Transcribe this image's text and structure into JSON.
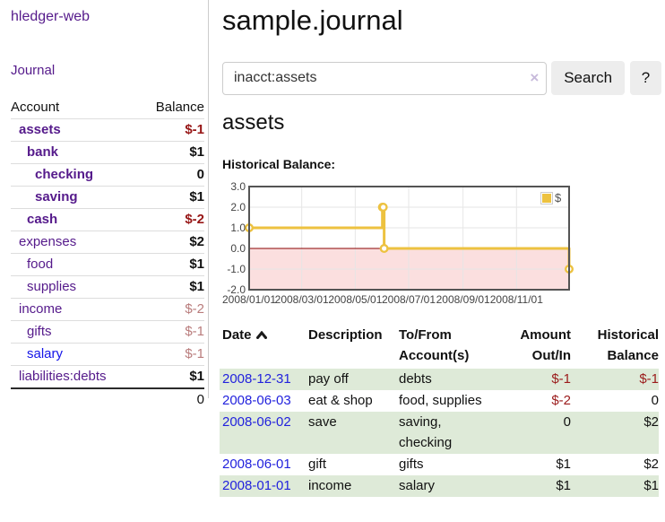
{
  "app": {
    "brand": "hledger-web"
  },
  "colors": {
    "link_purple": "#551a8b",
    "link_blue": "#1414e8",
    "date_blue": "#2222dd",
    "negative_strong": "#971616",
    "negative_muted": "#b97c7c",
    "negative_table": "#9b1b1b",
    "row_green": "#deead8",
    "line_gold": "#edc240",
    "zero_line": "#8b0000",
    "negative_region": "#fbdfdf"
  },
  "sidebar": {
    "journal_link": "Journal",
    "accounts_header": {
      "account": "Account",
      "balance": "Balance"
    },
    "accounts": [
      {
        "name": "assets",
        "balance": "$-1",
        "level": 0,
        "bold": true,
        "balance_class": "neg-strong"
      },
      {
        "name": "bank",
        "balance": "$1",
        "level": 1,
        "bold": true,
        "balance_class": "pos"
      },
      {
        "name": "checking",
        "balance": "0",
        "level": 2,
        "bold": true,
        "balance_class": "pos"
      },
      {
        "name": "saving",
        "balance": "$1",
        "level": 2,
        "bold": true,
        "balance_class": "pos"
      },
      {
        "name": "cash",
        "balance": "$-2",
        "level": 1,
        "bold": true,
        "balance_class": "neg-strong"
      },
      {
        "name": "expenses",
        "balance": "$2",
        "level": 0,
        "bold": false,
        "balance_class": "pos"
      },
      {
        "name": "food",
        "balance": "$1",
        "level": 1,
        "bold": false,
        "balance_class": "pos"
      },
      {
        "name": "supplies",
        "balance": "$1",
        "level": 1,
        "bold": false,
        "balance_class": "pos"
      },
      {
        "name": "income",
        "balance": "$-2",
        "level": 0,
        "bold": false,
        "balance_class": "neg"
      },
      {
        "name": "gifts",
        "balance": "$-1",
        "level": 1,
        "bold": false,
        "balance_class": "neg"
      },
      {
        "name": "salary",
        "balance": "$-1",
        "level": 1,
        "bold": false,
        "balance_class": "neg",
        "blue": true
      },
      {
        "name": "liabilities:debts",
        "balance": "$1",
        "level": 0,
        "bold": false,
        "balance_class": "pos"
      }
    ],
    "total": "0"
  },
  "main": {
    "title": "sample.journal",
    "search": {
      "value": "inacct:assets",
      "clear_icon": "×",
      "button": "Search",
      "help_button": "?"
    },
    "heading": "assets",
    "chart_label": "Historical Balance:"
  },
  "chart_data": {
    "type": "line",
    "step": true,
    "title": "Historical Balance:",
    "series": [
      {
        "name": "$",
        "color": "#edc240",
        "points": [
          [
            "2008-01-01",
            1
          ],
          [
            "2008-06-01",
            2
          ],
          [
            "2008-06-02",
            2
          ],
          [
            "2008-06-03",
            0
          ],
          [
            "2008-12-31",
            -1
          ]
        ]
      }
    ],
    "xlim": [
      "2008-01-01",
      "2008-12-31"
    ],
    "ylim": [
      -2,
      3
    ],
    "y_ticks": [
      "3.0",
      "2.0",
      "1.0",
      "0.0",
      "-1.0",
      "-2.0"
    ],
    "x_ticks": [
      "2008/01/01",
      "2008/03/01",
      "2008/05/01",
      "2008/07/01",
      "2008/09/01",
      "2008/11/01"
    ],
    "grid": true,
    "legend_position": "top-right",
    "zero_line_color": "#8b0000",
    "negative_region_fill": "#fbdfdf"
  },
  "register": {
    "headers": {
      "date": "Date",
      "description": "Description",
      "tofrom": "To/From Account(s)",
      "amount": "Amount Out/In",
      "balance": "Historical Balance"
    },
    "rows": [
      {
        "date": "2008-12-31",
        "description": "pay off",
        "accounts": "debts",
        "amount": "$-1",
        "amount_negative": true,
        "balance": "$-1",
        "balance_negative": true
      },
      {
        "date": "2008-06-03",
        "description": "eat & shop",
        "accounts": "food, supplies",
        "amount": "$-2",
        "amount_negative": true,
        "balance": "0",
        "balance_negative": false
      },
      {
        "date": "2008-06-02",
        "description": "save",
        "accounts": "saving, checking",
        "amount": "0",
        "amount_negative": false,
        "balance": "$2",
        "balance_negative": false
      },
      {
        "date": "2008-06-01",
        "description": "gift",
        "accounts": "gifts",
        "amount": "$1",
        "amount_negative": false,
        "balance": "$2",
        "balance_negative": false
      },
      {
        "date": "2008-01-01",
        "description": "income",
        "accounts": "salary",
        "amount": "$1",
        "amount_negative": false,
        "balance": "$1",
        "balance_negative": false
      }
    ]
  }
}
